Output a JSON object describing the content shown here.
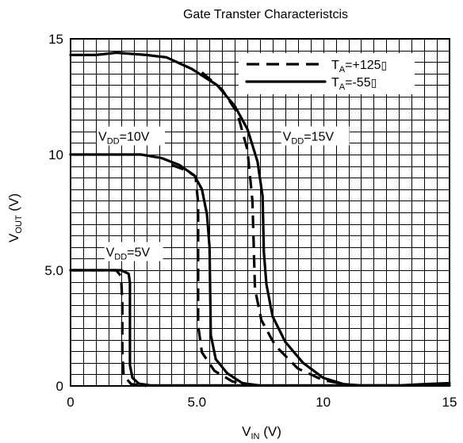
{
  "chart_data": {
    "type": "line",
    "title": "Gate Transter Characteristcis",
    "xlabel": {
      "main": "V",
      "sub": "IN",
      "unit": "(V)"
    },
    "ylabel": {
      "main": "V",
      "sub": "OUT",
      "unit": "(V)"
    },
    "xlim": [
      0,
      15
    ],
    "ylim": [
      0,
      15
    ],
    "x_ticks": [
      {
        "value": 0,
        "label": "0"
      },
      {
        "value": 5,
        "label": "5.0"
      },
      {
        "value": 10,
        "label": "10"
      },
      {
        "value": 15,
        "label": "15"
      }
    ],
    "y_ticks": [
      {
        "value": 0,
        "label": "0"
      },
      {
        "value": 5,
        "label": "5.0"
      },
      {
        "value": 10,
        "label": "10"
      },
      {
        "value": 15,
        "label": "15"
      }
    ],
    "grid": true,
    "grid_step": 0.5,
    "legend_position": "top-right",
    "legend": [
      {
        "series_name": "TA=+125",
        "style": "dashed",
        "label_main": "T",
        "label_sub": "A",
        "label_rest": "=+125",
        "label_tail": "▯"
      },
      {
        "series_name": "TA=-55",
        "style": "solid",
        "label_main": "T",
        "label_sub": "A",
        "label_rest": "=-55",
        "label_tail": "▯"
      }
    ],
    "annotations": [
      {
        "name": "annotation-vdd-5v",
        "main": "V",
        "sub": "DD",
        "rest": "=5V",
        "x": 1.4,
        "y": 5.6
      },
      {
        "name": "annotation-vdd-10v",
        "main": "V",
        "sub": "DD",
        "rest": "=10V",
        "x": 1.1,
        "y": 10.6
      },
      {
        "name": "annotation-vdd-15v",
        "main": "V",
        "sub": "DD",
        "rest": "=15V",
        "x": 8.4,
        "y": 10.6
      }
    ],
    "series": [
      {
        "name": "TA=+125",
        "vdd": "5V",
        "style": "dashed",
        "points": [
          [
            0,
            5.0
          ],
          [
            1.8,
            5.0
          ],
          [
            2.0,
            4.75
          ],
          [
            2.05,
            3.6
          ],
          [
            2.05,
            1.5
          ],
          [
            2.1,
            0.45
          ],
          [
            2.4,
            0.08
          ],
          [
            3.0,
            0.0
          ]
        ]
      },
      {
        "name": "TA=-55",
        "vdd": "5V",
        "style": "solid",
        "points": [
          [
            0,
            5.0
          ],
          [
            2.0,
            5.0
          ],
          [
            2.3,
            4.85
          ],
          [
            2.35,
            4.45
          ],
          [
            2.35,
            0.9
          ],
          [
            2.45,
            0.35
          ],
          [
            2.7,
            0.1
          ],
          [
            3.2,
            0.02
          ],
          [
            15.0,
            0.02
          ]
        ]
      },
      {
        "name": "TA=+125",
        "vdd": "10V",
        "style": "dashed",
        "points": [
          [
            4.0,
            9.55
          ],
          [
            4.6,
            9.3
          ],
          [
            4.95,
            9.05
          ],
          [
            5.05,
            7.9
          ],
          [
            5.05,
            2.6
          ],
          [
            5.2,
            1.45
          ],
          [
            5.7,
            0.65
          ],
          [
            6.4,
            0.2
          ],
          [
            7.0,
            0.05
          ]
        ]
      },
      {
        "name": "TA=-55",
        "vdd": "10V",
        "style": "solid",
        "points": [
          [
            0,
            10.0
          ],
          [
            2.8,
            10.0
          ],
          [
            3.6,
            9.85
          ],
          [
            4.3,
            9.55
          ],
          [
            4.9,
            9.1
          ],
          [
            5.2,
            8.5
          ],
          [
            5.4,
            7.4
          ],
          [
            5.5,
            6.0
          ],
          [
            5.55,
            2.2
          ],
          [
            5.75,
            1.15
          ],
          [
            6.2,
            0.55
          ],
          [
            6.8,
            0.12
          ],
          [
            7.5,
            0.02
          ]
        ]
      },
      {
        "name": "TA=+125",
        "vdd": "15V",
        "style": "dashed",
        "points": [
          [
            5.2,
            13.55
          ],
          [
            6.0,
            12.8
          ],
          [
            6.6,
            11.8
          ],
          [
            7.0,
            10.2
          ],
          [
            7.2,
            8.0
          ],
          [
            7.3,
            4.2
          ],
          [
            7.55,
            2.85
          ],
          [
            8.1,
            1.75
          ],
          [
            9.0,
            0.75
          ],
          [
            10.0,
            0.25
          ],
          [
            11.0,
            0.05
          ]
        ]
      },
      {
        "name": "TA=-55",
        "vdd": "15V",
        "style": "solid",
        "points": [
          [
            0,
            14.3
          ],
          [
            1.0,
            14.3
          ],
          [
            1.8,
            14.4
          ],
          [
            3.0,
            14.3
          ],
          [
            3.8,
            14.2
          ],
          [
            4.8,
            13.7
          ],
          [
            5.8,
            13.0
          ],
          [
            6.5,
            12.1
          ],
          [
            7.0,
            11.1
          ],
          [
            7.4,
            9.7
          ],
          [
            7.6,
            8.2
          ],
          [
            7.65,
            5.8
          ],
          [
            7.75,
            4.4
          ],
          [
            8.0,
            3.0
          ],
          [
            8.5,
            1.9
          ],
          [
            9.2,
            1.0
          ],
          [
            10.0,
            0.35
          ],
          [
            10.8,
            0.08
          ],
          [
            11.5,
            0.02
          ],
          [
            13.0,
            0.02
          ],
          [
            14.0,
            0.08
          ],
          [
            15.0,
            0.12
          ]
        ]
      }
    ]
  }
}
